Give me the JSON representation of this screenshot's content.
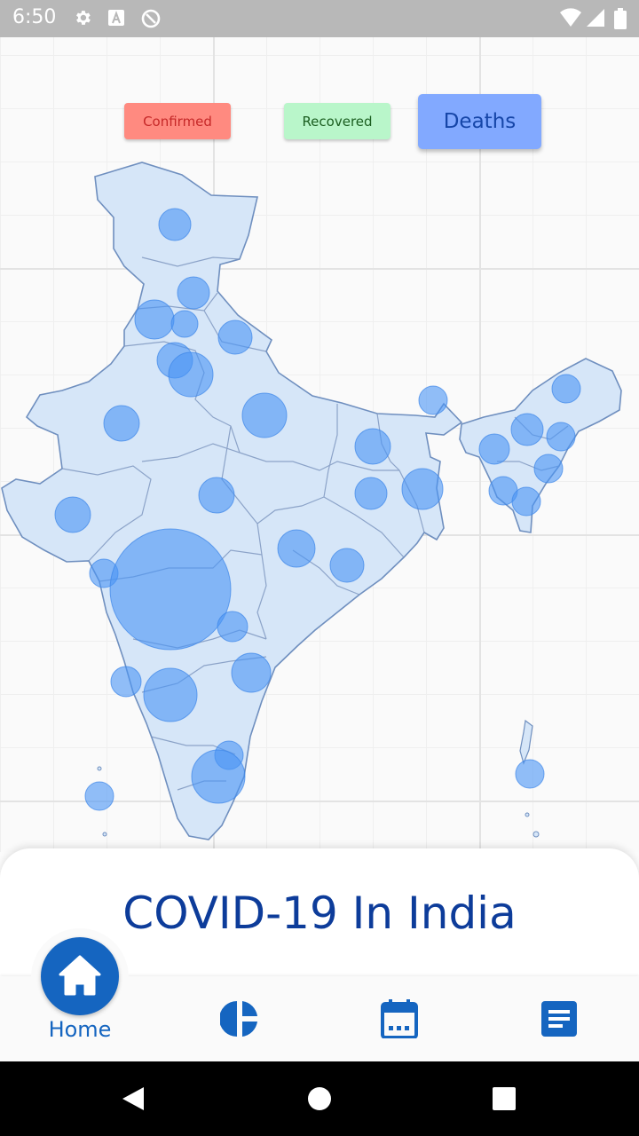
{
  "status_bar": {
    "time": "6:50",
    "icons": [
      "gear-icon",
      "a-icon",
      "sync-icon",
      "wifi-icon",
      "signal-icon",
      "battery-icon"
    ]
  },
  "filters": {
    "confirmed": "Confirmed",
    "recovered": "Recovered",
    "deaths": "Deaths",
    "active": "deaths"
  },
  "map": {
    "region": "India",
    "bubble_color": "#4a94f5",
    "land_color": "#d6e6f8",
    "border_color": "#6f8fbf"
  },
  "title": "COVID-19 In India",
  "nav": {
    "items": [
      {
        "label": "Home",
        "icon": "home-icon"
      },
      {
        "label": "",
        "icon": "pie-chart-icon"
      },
      {
        "label": "",
        "icon": "calendar-icon"
      },
      {
        "label": "",
        "icon": "article-icon"
      }
    ],
    "active_color": "#1565c0"
  },
  "system_nav": [
    "back-icon",
    "home-circle-icon",
    "recents-icon"
  ]
}
